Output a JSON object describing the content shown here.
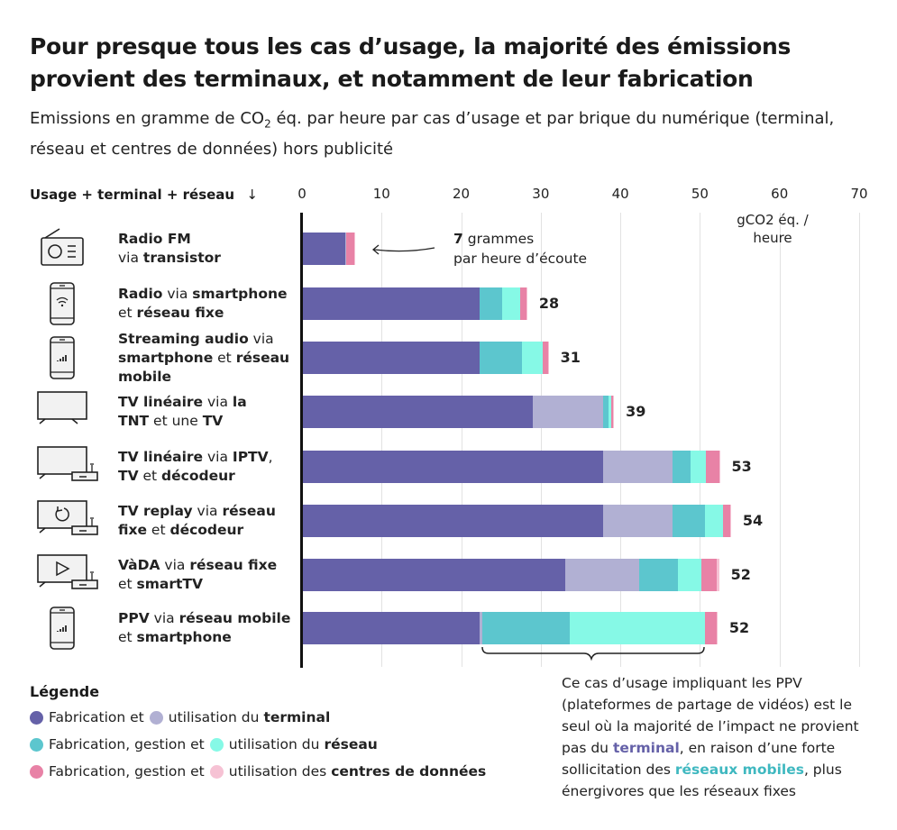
{
  "title": "Pour presque tous les cas d’usage, la majorité des émissions provient des terminaux, et notamment de leur fabrication",
  "subtitle_pre": "Emissions en gramme de CO",
  "subtitle_sub": "2",
  "subtitle_post": " éq. par heure par cas d’usage et par brique du numérique (terminal, réseau et centres de données) hors publicité",
  "sort_label": "Usage + terminal + réseau",
  "sort_icon": "arrow-down-icon",
  "colors": {
    "terminal_fabrication": "#6561a8",
    "terminal_utilisation": "#b1b0d3",
    "reseau_fabrication": "#5cc6ce",
    "reseau_utilisation": "#86f9e6",
    "dc_fabrication": "#e882a6",
    "dc_utilisation": "#f6c2d4"
  },
  "chart_data": {
    "type": "bar",
    "orientation": "horizontal",
    "stacked": true,
    "xlim": [
      0,
      70
    ],
    "xticks": [
      "0",
      "10",
      "20",
      "30",
      "40",
      "50",
      "60",
      "70"
    ],
    "unit_label": "gCO2 éq. / heure",
    "grid": true,
    "series_keys": [
      "terminal_fabrication",
      "terminal_utilisation",
      "reseau_fabrication",
      "reseau_utilisation",
      "dc_fabrication",
      "dc_utilisation"
    ],
    "rows": [
      {
        "icon": "radio-icon",
        "label": [
          {
            "t": "Radio FM",
            "b": true
          },
          {
            "t": "\nvia ",
            "b": false
          },
          {
            "t": "transistor",
            "b": true
          }
        ],
        "values": [
          5.4,
          0.2,
          0,
          0,
          1.0,
          0.1
        ],
        "total": "7"
      },
      {
        "icon": "smartphone-wifi-icon",
        "label": [
          {
            "t": "Radio",
            "b": true
          },
          {
            "t": " via ",
            "b": false
          },
          {
            "t": "smartphone",
            "b": true
          },
          {
            "t": "\net ",
            "b": false
          },
          {
            "t": "réseau fixe",
            "b": true
          }
        ],
        "values": [
          22.3,
          0,
          2.9,
          2.2,
          0.8,
          0.1
        ],
        "total": "28"
      },
      {
        "icon": "smartphone-signal-icon",
        "label": [
          {
            "t": "Streaming audio",
            "b": true
          },
          {
            "t": " via\n",
            "b": false
          },
          {
            "t": "smartphone",
            "b": true
          },
          {
            "t": " et ",
            "b": false
          },
          {
            "t": "réseau\nmobile",
            "b": true
          }
        ],
        "values": [
          22.3,
          0,
          5.3,
          2.6,
          0.7,
          0.1
        ],
        "total": "31"
      },
      {
        "icon": "tv-icon",
        "label": [
          {
            "t": "TV linéaire",
            "b": true
          },
          {
            "t": " via ",
            "b": false
          },
          {
            "t": "la\nTNT",
            "b": true
          },
          {
            "t": " et une ",
            "b": false
          },
          {
            "t": "TV",
            "b": true
          }
        ],
        "values": [
          29.0,
          8.8,
          0.7,
          0.4,
          0.2,
          0.1
        ],
        "total": "39"
      },
      {
        "icon": "tv-decoder-icon",
        "label": [
          {
            "t": "TV linéaire",
            "b": true
          },
          {
            "t": " via ",
            "b": false
          },
          {
            "t": "IPTV",
            "b": true
          },
          {
            "t": ",\n",
            "b": false
          },
          {
            "t": "TV",
            "b": true
          },
          {
            "t": " et ",
            "b": false
          },
          {
            "t": "décodeur",
            "b": true
          }
        ],
        "values": [
          37.8,
          8.8,
          2.2,
          2.0,
          1.6,
          0.1
        ],
        "total": "53"
      },
      {
        "icon": "tv-replay-decoder-icon",
        "label": [
          {
            "t": "TV replay",
            "b": true
          },
          {
            "t": " via ",
            "b": false
          },
          {
            "t": "réseau\nfixe",
            "b": true
          },
          {
            "t": " et ",
            "b": false
          },
          {
            "t": "décodeur",
            "b": true
          }
        ],
        "values": [
          37.8,
          8.8,
          4.0,
          2.3,
          0.9,
          0.1
        ],
        "total": "54"
      },
      {
        "icon": "tv-play-decoder-icon",
        "label": [
          {
            "t": "VàDA",
            "b": true
          },
          {
            "t": " via ",
            "b": false
          },
          {
            "t": "réseau fixe",
            "b": true
          },
          {
            "t": "\net ",
            "b": false
          },
          {
            "t": "smartTV",
            "b": true
          }
        ],
        "values": [
          33.1,
          9.3,
          4.8,
          3.0,
          1.9,
          0.3
        ],
        "total": "52"
      },
      {
        "icon": "smartphone-signal-icon",
        "label": [
          {
            "t": "PPV",
            "b": true
          },
          {
            "t": " via ",
            "b": false
          },
          {
            "t": "réseau mobile",
            "b": true
          },
          {
            "t": "\net ",
            "b": false
          },
          {
            "t": "smartphone",
            "b": true
          }
        ],
        "values": [
          22.3,
          0.3,
          11.0,
          17.0,
          1.5,
          0.1
        ],
        "total": "52"
      }
    ]
  },
  "annotation": {
    "bold": "7",
    "line1": " grammes",
    "line2": "par heure d’écoute"
  },
  "legend": {
    "title": "Légende",
    "rows": [
      {
        "a": "Fabrication et ",
        "b": "utilisation du ",
        "bold": "terminal"
      },
      {
        "a": "Fabrication, gestion et ",
        "b": "utilisation du ",
        "bold": "réseau"
      },
      {
        "a": "Fabrication, gestion et ",
        "b": "utilisation des ",
        "bold": "centres de données"
      }
    ]
  },
  "note": {
    "p1": "Ce cas d’usage impliquant les PPV (plateformes de partage de vidéos) est le seul où la majorité de l’impact ne provient pas du ",
    "k1": "terminal",
    "p2": ", en raison d’une forte sollicitation des ",
    "k2": "réseaux mobiles",
    "p3": ", plus énergivores que les réseaux fixes"
  }
}
